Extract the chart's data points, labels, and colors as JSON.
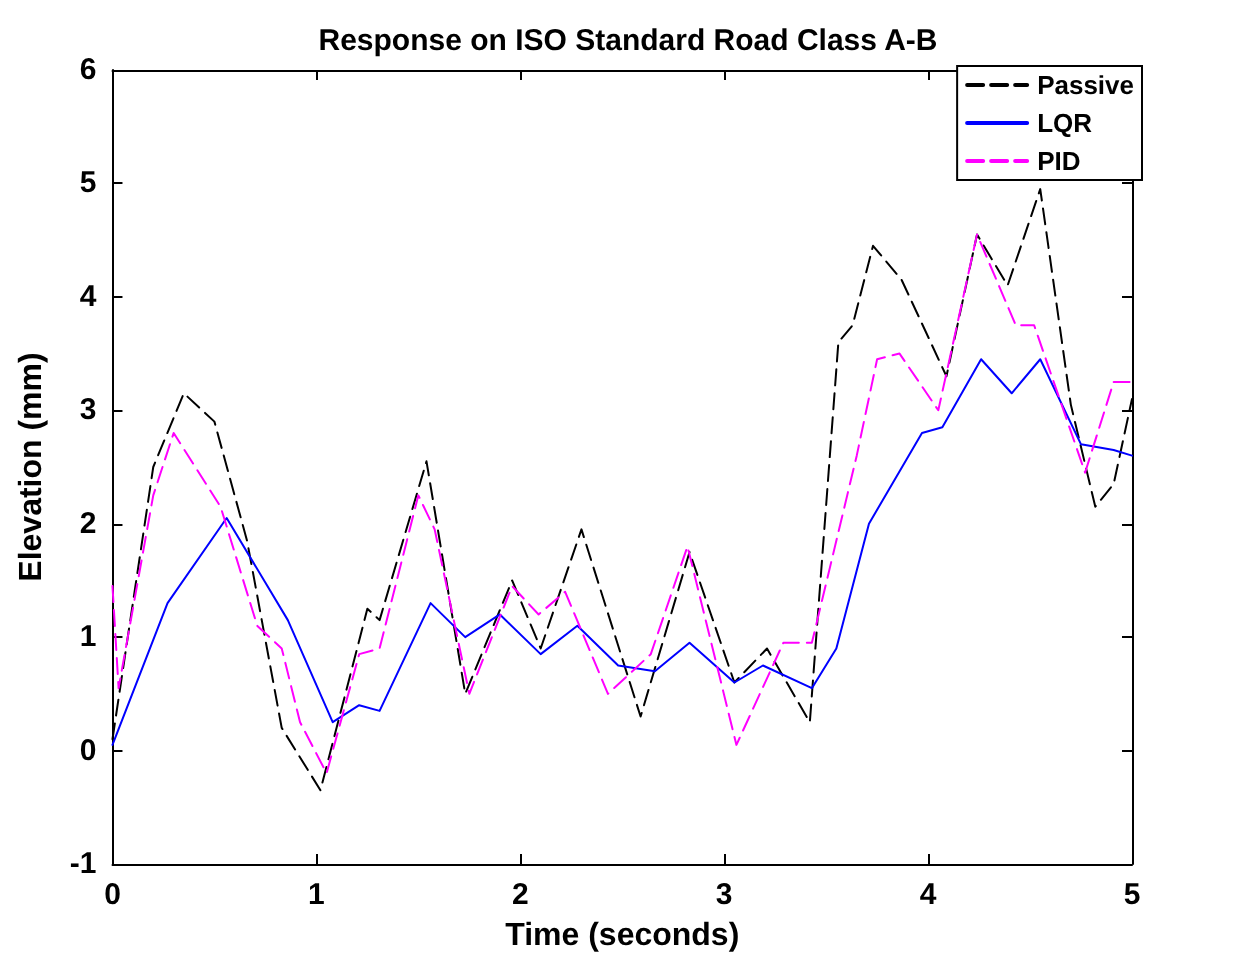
{
  "chart_data": {
    "type": "line",
    "title": "Response on ISO Standard Road Class A-B",
    "xlabel": "Time (seconds)",
    "ylabel": "Elevation (mm)",
    "xlim": [
      0,
      5
    ],
    "ylim": [
      -1,
      6
    ],
    "xticks": [
      0,
      1,
      2,
      3,
      4,
      5
    ],
    "yticks": [
      -1,
      0,
      1,
      2,
      3,
      4,
      5,
      6
    ],
    "grid": false,
    "legend": "top right",
    "marker": "none",
    "series": [
      {
        "name": "Passive",
        "color": "#000000",
        "line_style": "dashed",
        "x": [
          0,
          0.2,
          0.35,
          0.5,
          0.66,
          0.83,
          1.02,
          1.25,
          1.31,
          1.54,
          1.73,
          1.96,
          2.1,
          2.3,
          2.59,
          2.83,
          3.05,
          3.21,
          3.42,
          3.56,
          3.63,
          3.73,
          3.87,
          4.09,
          4.24,
          4.39,
          4.55,
          4.7,
          4.82,
          4.91,
          5
        ],
        "values": [
          0.1,
          2.5,
          3.15,
          2.9,
          1.85,
          0.2,
          -0.35,
          1.25,
          1.15,
          2.55,
          0.5,
          1.5,
          0.9,
          1.95,
          0.3,
          1.75,
          0.6,
          0.9,
          0.25,
          3.6,
          3.75,
          4.45,
          4.15,
          3.3,
          4.55,
          4.1,
          4.95,
          3.05,
          2.15,
          2.35,
          3.1
        ]
      },
      {
        "name": "LQR",
        "color": "#0000ff",
        "line_style": "solid",
        "x": [
          0,
          0.27,
          0.56,
          0.86,
          1.08,
          1.21,
          1.31,
          1.56,
          1.73,
          1.9,
          2.1,
          2.28,
          2.48,
          2.66,
          2.83,
          3.05,
          3.19,
          3.43,
          3.55,
          3.71,
          3.97,
          4.07,
          4.26,
          4.41,
          4.55,
          4.75,
          4.91,
          5
        ],
        "values": [
          0.05,
          1.3,
          2.05,
          1.15,
          0.25,
          0.4,
          0.35,
          1.3,
          1.0,
          1.2,
          0.85,
          1.1,
          0.75,
          0.7,
          0.95,
          0.6,
          0.75,
          0.55,
          0.9,
          2.0,
          2.8,
          2.85,
          3.45,
          3.15,
          3.45,
          2.7,
          2.65,
          2.6
        ]
      },
      {
        "name": "PID",
        "color": "#ff00ff",
        "line_style": "dashed",
        "x": [
          0,
          0.03,
          0.2,
          0.3,
          0.53,
          0.71,
          0.83,
          0.92,
          1.05,
          1.21,
          1.31,
          1.5,
          1.58,
          1.75,
          1.96,
          2.09,
          2.22,
          2.43,
          2.64,
          2.82,
          3.06,
          3.29,
          3.43,
          3.65,
          3.75,
          3.86,
          4.05,
          4.24,
          4.43,
          4.52,
          4.77,
          4.91,
          5
        ],
        "values": [
          1.45,
          0.55,
          2.25,
          2.8,
          2.15,
          1.1,
          0.9,
          0.25,
          -0.2,
          0.85,
          0.9,
          2.25,
          1.95,
          0.5,
          1.45,
          1.2,
          1.4,
          0.5,
          0.85,
          1.8,
          0.05,
          0.95,
          0.95,
          2.6,
          3.45,
          3.5,
          3.0,
          4.55,
          3.75,
          3.75,
          2.45,
          3.25,
          3.25
        ]
      }
    ]
  }
}
